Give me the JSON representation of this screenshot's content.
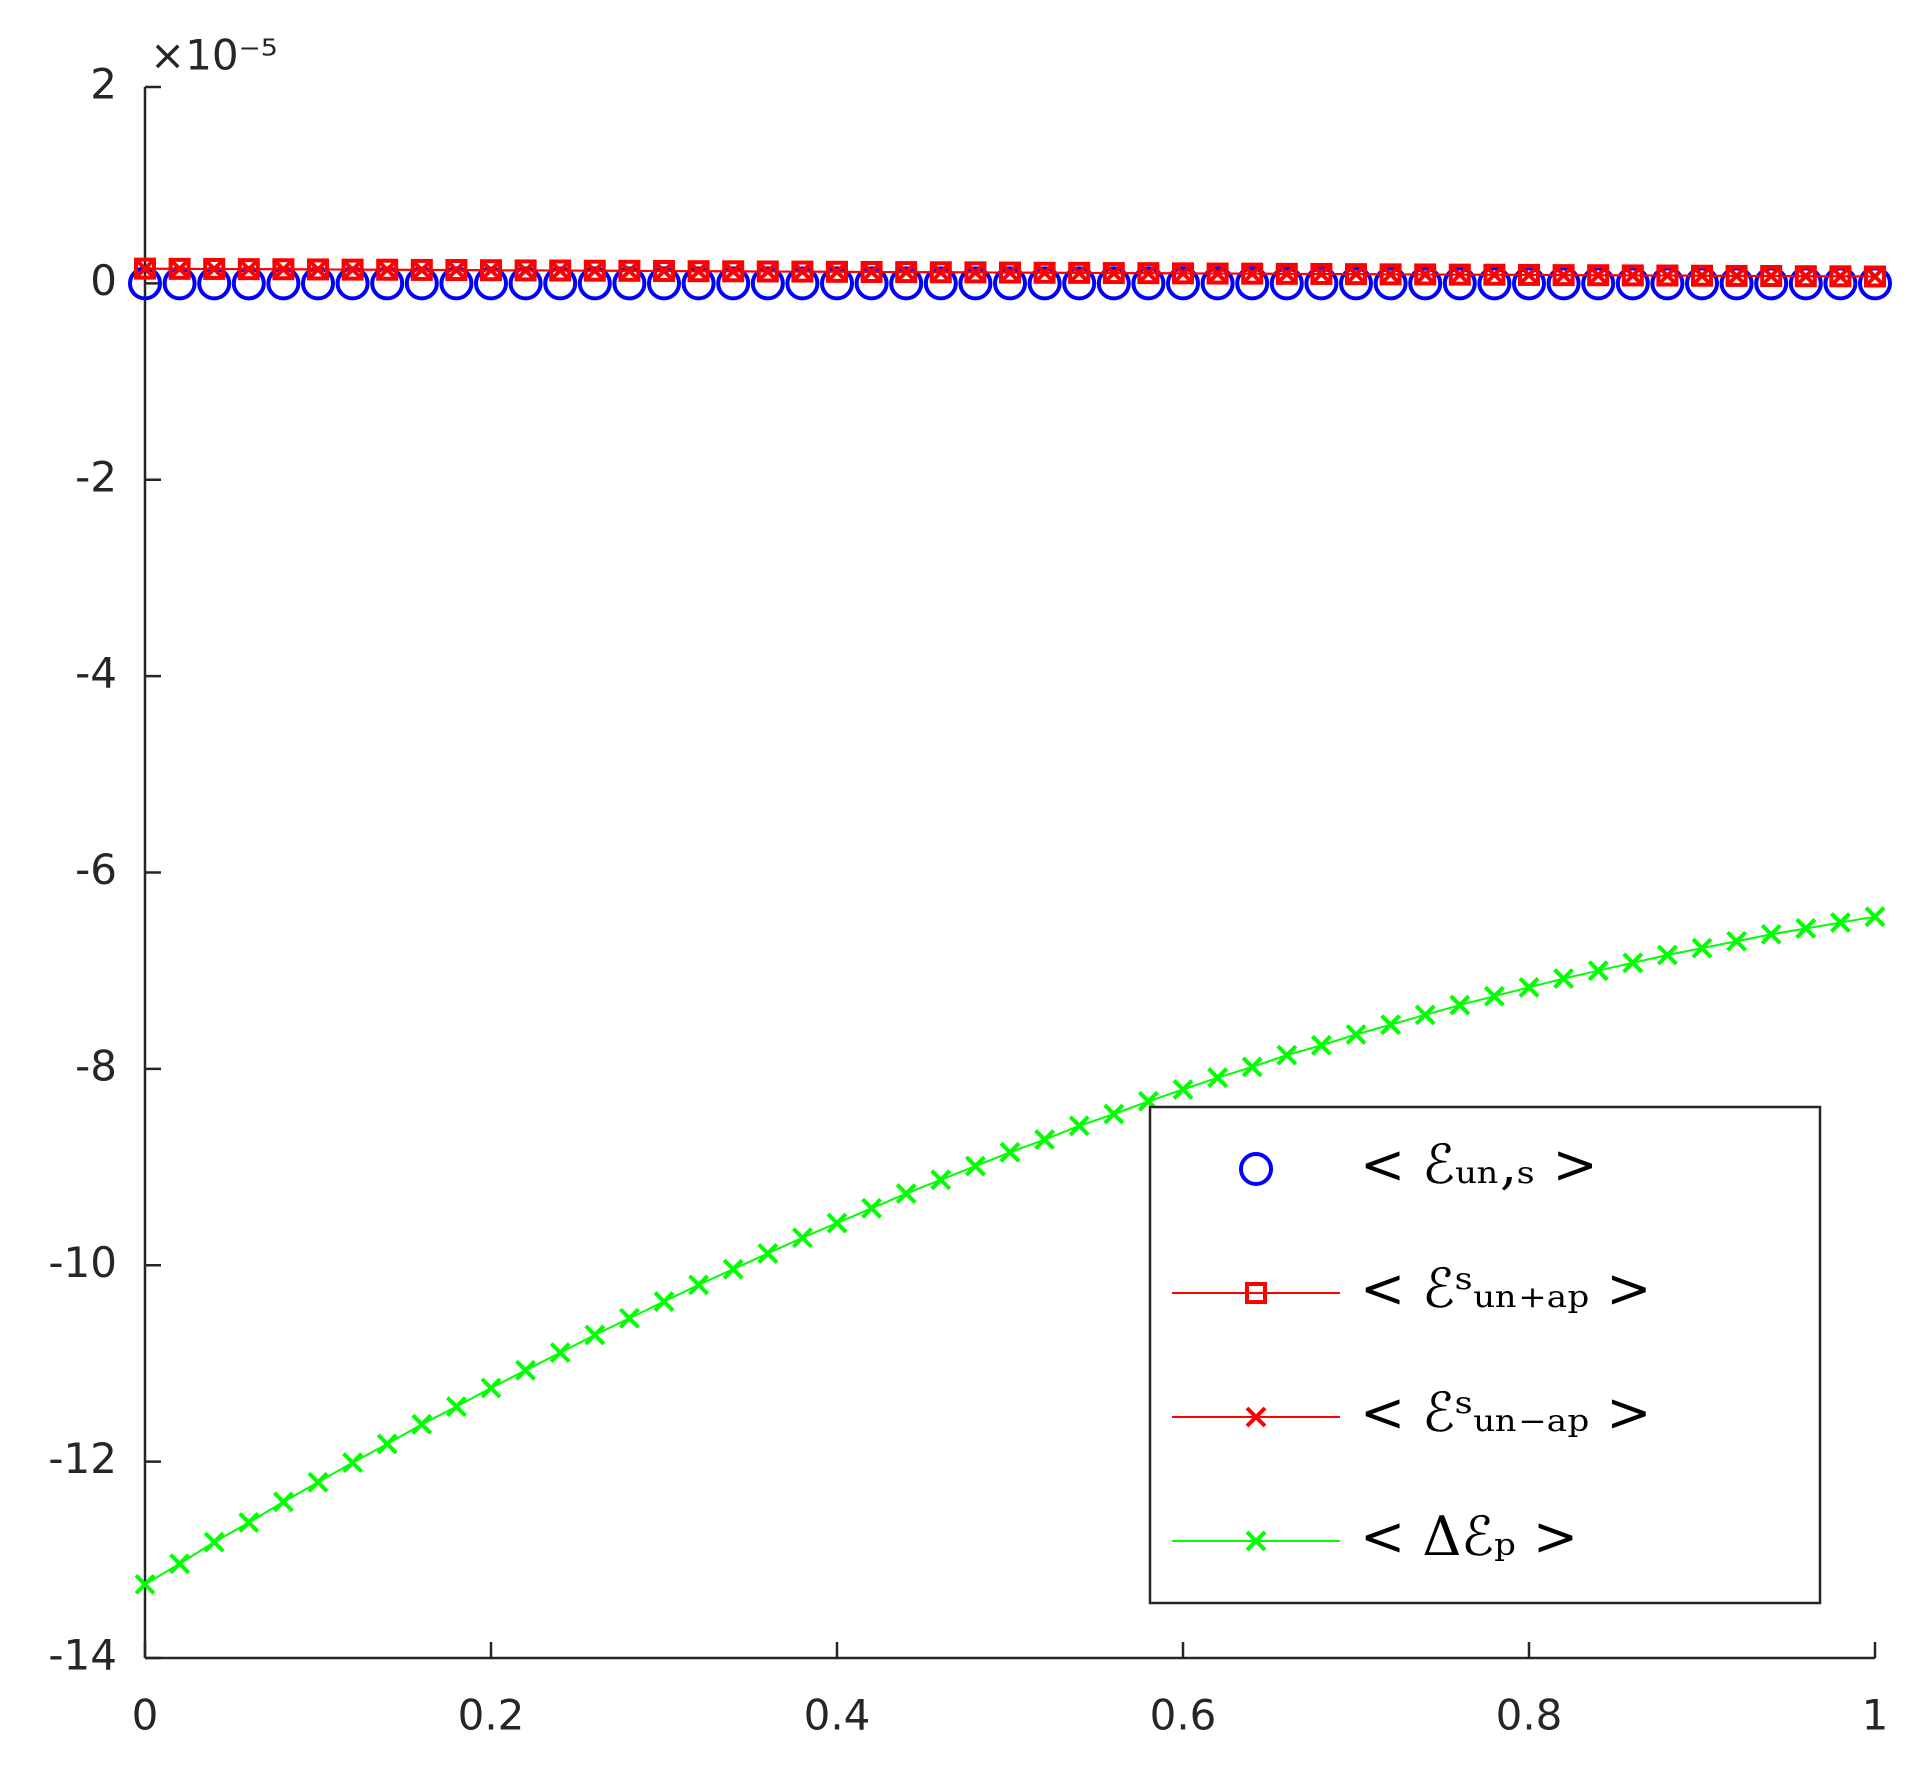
{
  "chart_data": {
    "type": "line",
    "y_exponent_label": "×10⁻⁵",
    "x": [
      0,
      0.02,
      0.04,
      0.06,
      0.08,
      0.1,
      0.12,
      0.14,
      0.16,
      0.18,
      0.2,
      0.22,
      0.24,
      0.26,
      0.28,
      0.3,
      0.32,
      0.34,
      0.36,
      0.38,
      0.4,
      0.42,
      0.44,
      0.46,
      0.48,
      0.5,
      0.52,
      0.54,
      0.56,
      0.58,
      0.6,
      0.62,
      0.64,
      0.66,
      0.68,
      0.7,
      0.72,
      0.74,
      0.76,
      0.78,
      0.8,
      0.82,
      0.84,
      0.86,
      0.88,
      0.9,
      0.92,
      0.94,
      0.96,
      0.98,
      1
    ],
    "xlim": [
      0,
      1
    ],
    "xticks": [
      0,
      0.2,
      0.4,
      0.6,
      0.8,
      1
    ],
    "ylim": [
      -14,
      2
    ],
    "yticks": [
      -14,
      -12,
      -10,
      -8,
      -6,
      -4,
      -2,
      0,
      2
    ],
    "grid": false,
    "legend": "lower right",
    "series": [
      {
        "name": "< ℰᵤₙ,ₛ >",
        "color": "#0000ff",
        "marker": "o",
        "line": false,
        "values": [
          0,
          0,
          0,
          0,
          0,
          0,
          0,
          0,
          0,
          0,
          0,
          0,
          0,
          0,
          0,
          0,
          0,
          0,
          0,
          0,
          0,
          0,
          0,
          0,
          0,
          0,
          0,
          0,
          0,
          0,
          0,
          0,
          0,
          0,
          0,
          0,
          0,
          0,
          0,
          0,
          0,
          0,
          0,
          0,
          0,
          0,
          0,
          0,
          0,
          0,
          0
        ]
      },
      {
        "name": "< ℰˢᵤₙ₊ₐₚ >",
        "color": "#ff0000",
        "marker": "s",
        "line": true,
        "values": [
          0.15,
          0.148,
          0.147,
          0.145,
          0.144,
          0.142,
          0.14,
          0.139,
          0.137,
          0.136,
          0.134,
          0.132,
          0.131,
          0.129,
          0.128,
          0.126,
          0.124,
          0.123,
          0.121,
          0.12,
          0.118,
          0.116,
          0.115,
          0.113,
          0.112,
          0.11,
          0.108,
          0.107,
          0.105,
          0.104,
          0.102,
          0.1,
          0.099,
          0.097,
          0.096,
          0.094,
          0.092,
          0.091,
          0.089,
          0.088,
          0.086,
          0.084,
          0.083,
          0.081,
          0.08,
          0.078,
          0.076,
          0.075,
          0.073,
          0.072,
          0.07
        ]
      },
      {
        "name": "< ℰˢᵤₙ₋ₐₚ >",
        "color": "#ff0000",
        "marker": "x",
        "line": true,
        "values": [
          0.15,
          0.148,
          0.147,
          0.145,
          0.144,
          0.142,
          0.14,
          0.139,
          0.137,
          0.136,
          0.134,
          0.132,
          0.131,
          0.129,
          0.128,
          0.126,
          0.124,
          0.123,
          0.121,
          0.12,
          0.118,
          0.116,
          0.115,
          0.113,
          0.112,
          0.11,
          0.108,
          0.107,
          0.105,
          0.104,
          0.102,
          0.1,
          0.099,
          0.097,
          0.096,
          0.094,
          0.092,
          0.091,
          0.089,
          0.088,
          0.086,
          0.084,
          0.083,
          0.081,
          0.08,
          0.078,
          0.076,
          0.075,
          0.073,
          0.072,
          0.07
        ]
      },
      {
        "name": "< Δℰₚ >",
        "color": "#00ff00",
        "marker": "x",
        "line": true,
        "values": [
          -13.25,
          -13.04,
          -12.82,
          -12.62,
          -12.41,
          -12.21,
          -12.01,
          -11.82,
          -11.62,
          -11.44,
          -11.25,
          -11.07,
          -10.89,
          -10.71,
          -10.54,
          -10.37,
          -10.2,
          -10.04,
          -9.88,
          -9.72,
          -9.57,
          -9.42,
          -9.27,
          -9.13,
          -8.99,
          -8.85,
          -8.72,
          -8.58,
          -8.46,
          -8.33,
          -8.21,
          -8.09,
          -7.98,
          -7.86,
          -7.76,
          -7.65,
          -7.55,
          -7.45,
          -7.35,
          -7.26,
          -7.17,
          -7.08,
          -7,
          -6.92,
          -6.84,
          -6.77,
          -6.7,
          -6.63,
          -6.57,
          -6.51,
          -6.45
        ]
      }
    ]
  }
}
